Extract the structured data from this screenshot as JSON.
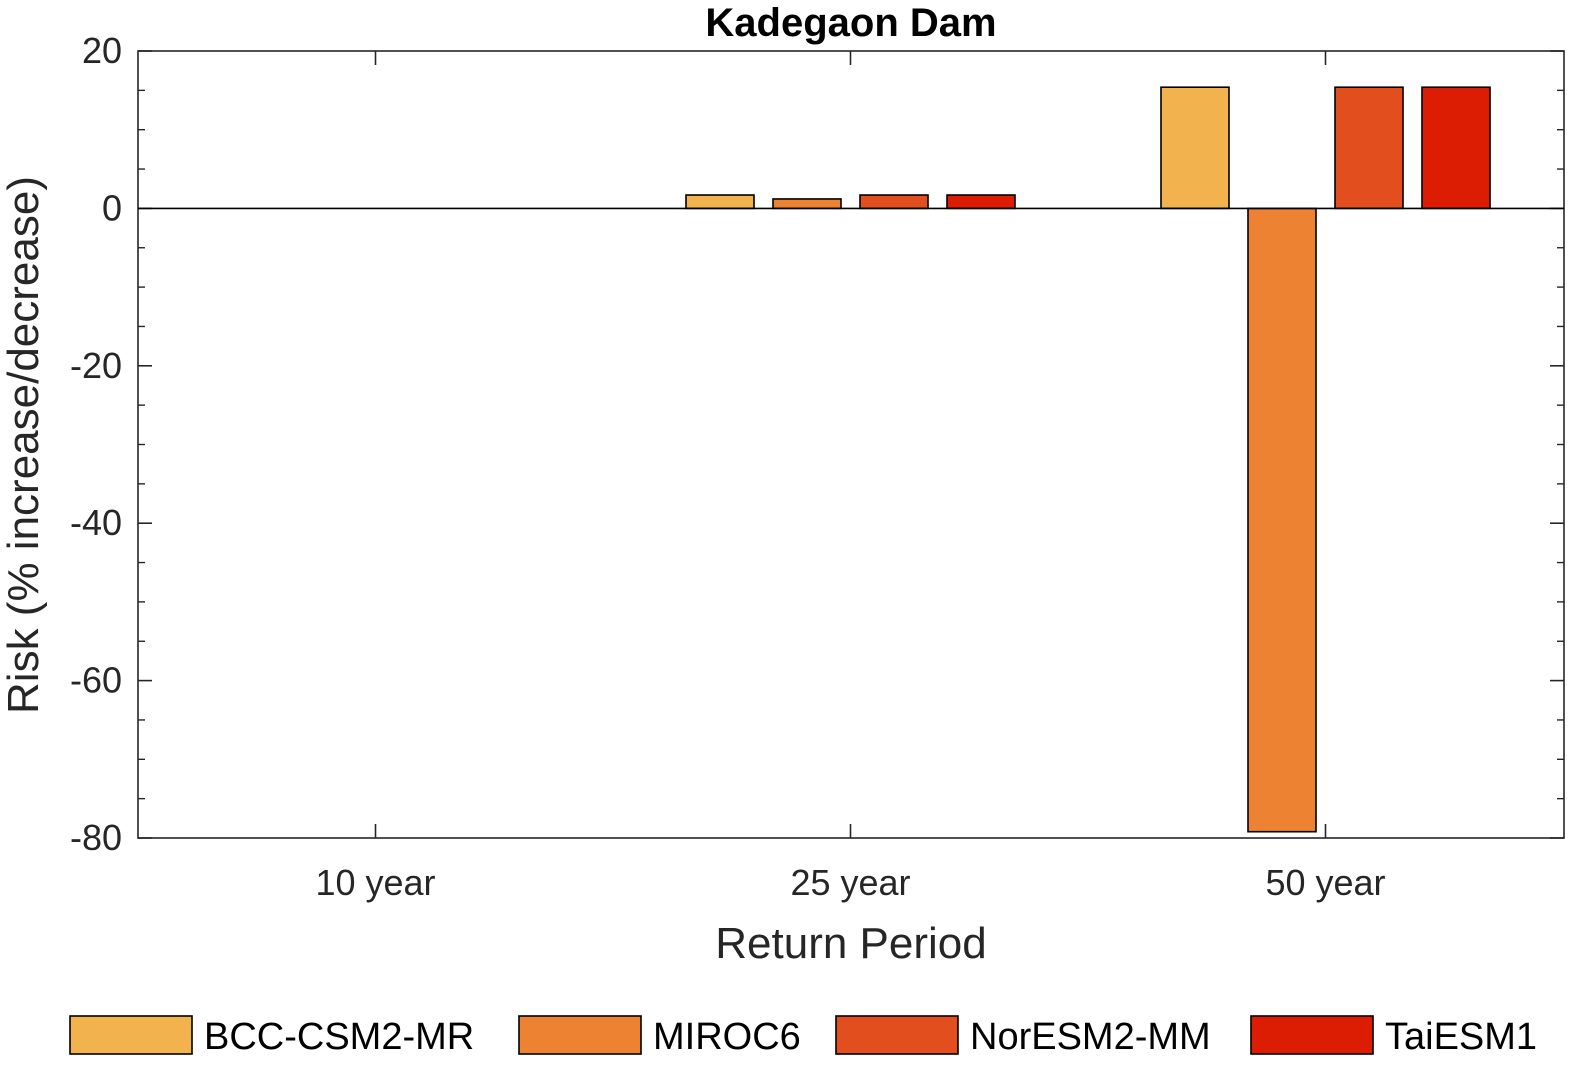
{
  "chart_data": {
    "type": "bar",
    "title": "Kadegaon Dam",
    "xlabel": "Return Period",
    "ylabel": "Risk (% increase/decrease)",
    "categories": [
      "10 year",
      "25 year",
      "50 year"
    ],
    "ylim": [
      -80,
      20
    ],
    "yticks": [
      20,
      0,
      -20,
      -40,
      -60,
      -80
    ],
    "grid": false,
    "legend_position": "bottom",
    "series": [
      {
        "name": "BCC-CSM2-MR",
        "color": "#F2B34F",
        "values": [
          0,
          1.7,
          15.4
        ]
      },
      {
        "name": "MIROC6",
        "color": "#ED8233",
        "values": [
          0,
          1.2,
          -79.2
        ]
      },
      {
        "name": "NorESM2-MM",
        "color": "#E24E1E",
        "values": [
          0,
          1.7,
          15.4
        ]
      },
      {
        "name": "TaiESM1",
        "color": "#DC1C03",
        "values": [
          0,
          1.7,
          15.4
        ]
      }
    ]
  }
}
